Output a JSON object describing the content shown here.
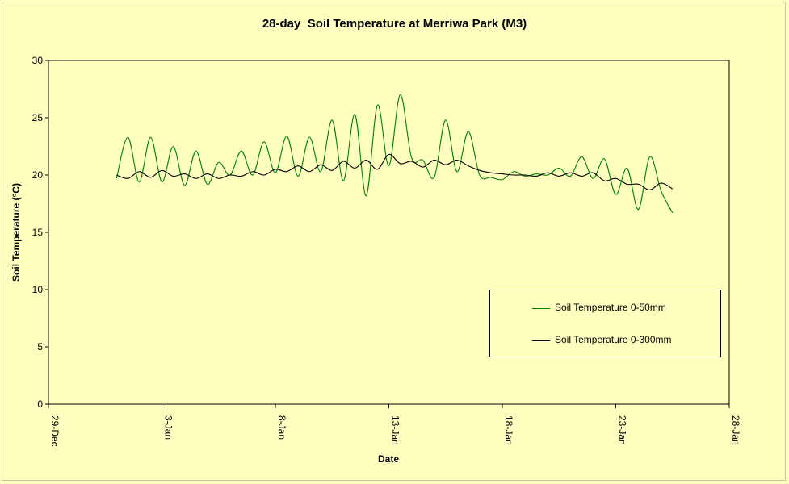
{
  "chart_data": {
    "type": "line",
    "title": "28-day  Soil Temperature at Merriwa Park (M3)",
    "xlabel": "Date",
    "ylabel": "Soil Temperature (°C)",
    "ylim": [
      0,
      30
    ],
    "yticks": [
      0,
      5,
      10,
      15,
      20,
      25,
      30
    ],
    "xlim": [
      "29-Dec",
      "28-Jan"
    ],
    "xticks": [
      "29-Dec",
      "3-Jan",
      "8-Jan",
      "13-Jan",
      "18-Jan",
      "23-Jan",
      "28-Jan"
    ],
    "grid": false,
    "legend_position": "bottom-right",
    "x_axis_note": "x values are dates; first reading 1-Jan 00:00, last reading 25-Jan 12:00",
    "series": [
      {
        "name": "Soil Temperature 0-50mm",
        "color": "#008000",
        "points": [
          [
            "1-Jan 00:00",
            19.7
          ],
          [
            "1-Jan 12:00",
            23.3
          ],
          [
            "2-Jan 00:00",
            19.4
          ],
          [
            "2-Jan 12:00",
            23.3
          ],
          [
            "3-Jan 00:00",
            19.4
          ],
          [
            "3-Jan 12:00",
            22.5
          ],
          [
            "4-Jan 00:00",
            19.1
          ],
          [
            "4-Jan 12:00",
            22.1
          ],
          [
            "5-Jan 00:00",
            19.2
          ],
          [
            "5-Jan 12:00",
            21.1
          ],
          [
            "6-Jan 00:00",
            20.0
          ],
          [
            "6-Jan 12:00",
            22.1
          ],
          [
            "7-Jan 00:00",
            20.0
          ],
          [
            "7-Jan 12:00",
            22.9
          ],
          [
            "8-Jan 00:00",
            20.2
          ],
          [
            "8-Jan 12:00",
            23.4
          ],
          [
            "9-Jan 00:00",
            19.9
          ],
          [
            "9-Jan 12:00",
            23.3
          ],
          [
            "10-Jan 00:00",
            20.3
          ],
          [
            "10-Jan 12:00",
            24.8
          ],
          [
            "11-Jan 00:00",
            19.5
          ],
          [
            "11-Jan 12:00",
            25.3
          ],
          [
            "12-Jan 00:00",
            18.2
          ],
          [
            "12-Jan 12:00",
            26.1
          ],
          [
            "13-Jan 00:00",
            20.8
          ],
          [
            "13-Jan 12:00",
            27.0
          ],
          [
            "14-Jan 00:00",
            21.5
          ],
          [
            "14-Jan 12:00",
            21.3
          ],
          [
            "15-Jan 00:00",
            19.8
          ],
          [
            "15-Jan 12:00",
            24.8
          ],
          [
            "16-Jan 00:00",
            20.3
          ],
          [
            "16-Jan 12:00",
            23.8
          ],
          [
            "17-Jan 00:00",
            20.0
          ],
          [
            "17-Jan 12:00",
            19.8
          ],
          [
            "18-Jan 00:00",
            19.6
          ],
          [
            "18-Jan 12:00",
            20.3
          ],
          [
            "19-Jan 00:00",
            19.9
          ],
          [
            "19-Jan 12:00",
            20.1
          ],
          [
            "20-Jan 00:00",
            20.0
          ],
          [
            "20-Jan 12:00",
            20.6
          ],
          [
            "21-Jan 00:00",
            19.9
          ],
          [
            "21-Jan 12:00",
            21.6
          ],
          [
            "22-Jan 00:00",
            19.7
          ],
          [
            "22-Jan 12:00",
            21.4
          ],
          [
            "23-Jan 00:00",
            18.3
          ],
          [
            "23-Jan 12:00",
            20.6
          ],
          [
            "24-Jan 00:00",
            17.0
          ],
          [
            "24-Jan 12:00",
            21.6
          ],
          [
            "25-Jan 00:00",
            18.6
          ],
          [
            "25-Jan 12:00",
            16.7
          ]
        ]
      },
      {
        "name": "Soil Temperature 0-300mm",
        "color": "#000000",
        "points": [
          [
            "1-Jan 00:00",
            20.0
          ],
          [
            "1-Jan 12:00",
            19.7
          ],
          [
            "2-Jan 00:00",
            20.3
          ],
          [
            "2-Jan 12:00",
            19.8
          ],
          [
            "3-Jan 00:00",
            20.4
          ],
          [
            "3-Jan 12:00",
            19.9
          ],
          [
            "4-Jan 00:00",
            20.1
          ],
          [
            "4-Jan 12:00",
            19.7
          ],
          [
            "5-Jan 00:00",
            20.1
          ],
          [
            "5-Jan 12:00",
            19.7
          ],
          [
            "6-Jan 00:00",
            20.0
          ],
          [
            "6-Jan 12:00",
            19.9
          ],
          [
            "7-Jan 00:00",
            20.3
          ],
          [
            "7-Jan 12:00",
            20.0
          ],
          [
            "8-Jan 00:00",
            20.5
          ],
          [
            "8-Jan 12:00",
            20.3
          ],
          [
            "9-Jan 00:00",
            20.8
          ],
          [
            "9-Jan 12:00",
            20.3
          ],
          [
            "10-Jan 00:00",
            20.9
          ],
          [
            "10-Jan 12:00",
            20.4
          ],
          [
            "11-Jan 00:00",
            21.2
          ],
          [
            "11-Jan 12:00",
            20.6
          ],
          [
            "12-Jan 00:00",
            21.3
          ],
          [
            "12-Jan 12:00",
            20.5
          ],
          [
            "13-Jan 00:00",
            21.8
          ],
          [
            "13-Jan 12:00",
            21.0
          ],
          [
            "14-Jan 00:00",
            21.2
          ],
          [
            "14-Jan 12:00",
            20.7
          ],
          [
            "15-Jan 00:00",
            21.3
          ],
          [
            "15-Jan 12:00",
            20.9
          ],
          [
            "16-Jan 00:00",
            21.3
          ],
          [
            "16-Jan 12:00",
            20.8
          ],
          [
            "17-Jan 00:00",
            20.4
          ],
          [
            "17-Jan 12:00",
            20.2
          ],
          [
            "18-Jan 00:00",
            20.1
          ],
          [
            "18-Jan 12:00",
            20.0
          ],
          [
            "19-Jan 00:00",
            20.0
          ],
          [
            "19-Jan 12:00",
            19.9
          ],
          [
            "20-Jan 00:00",
            20.2
          ],
          [
            "20-Jan 12:00",
            19.9
          ],
          [
            "21-Jan 00:00",
            20.2
          ],
          [
            "21-Jan 12:00",
            19.9
          ],
          [
            "22-Jan 00:00",
            20.2
          ],
          [
            "22-Jan 12:00",
            19.5
          ],
          [
            "23-Jan 00:00",
            19.7
          ],
          [
            "23-Jan 12:00",
            19.2
          ],
          [
            "24-Jan 00:00",
            19.2
          ],
          [
            "24-Jan 12:00",
            18.7
          ],
          [
            "25-Jan 00:00",
            19.3
          ],
          [
            "25-Jan 12:00",
            18.8
          ]
        ]
      }
    ]
  }
}
